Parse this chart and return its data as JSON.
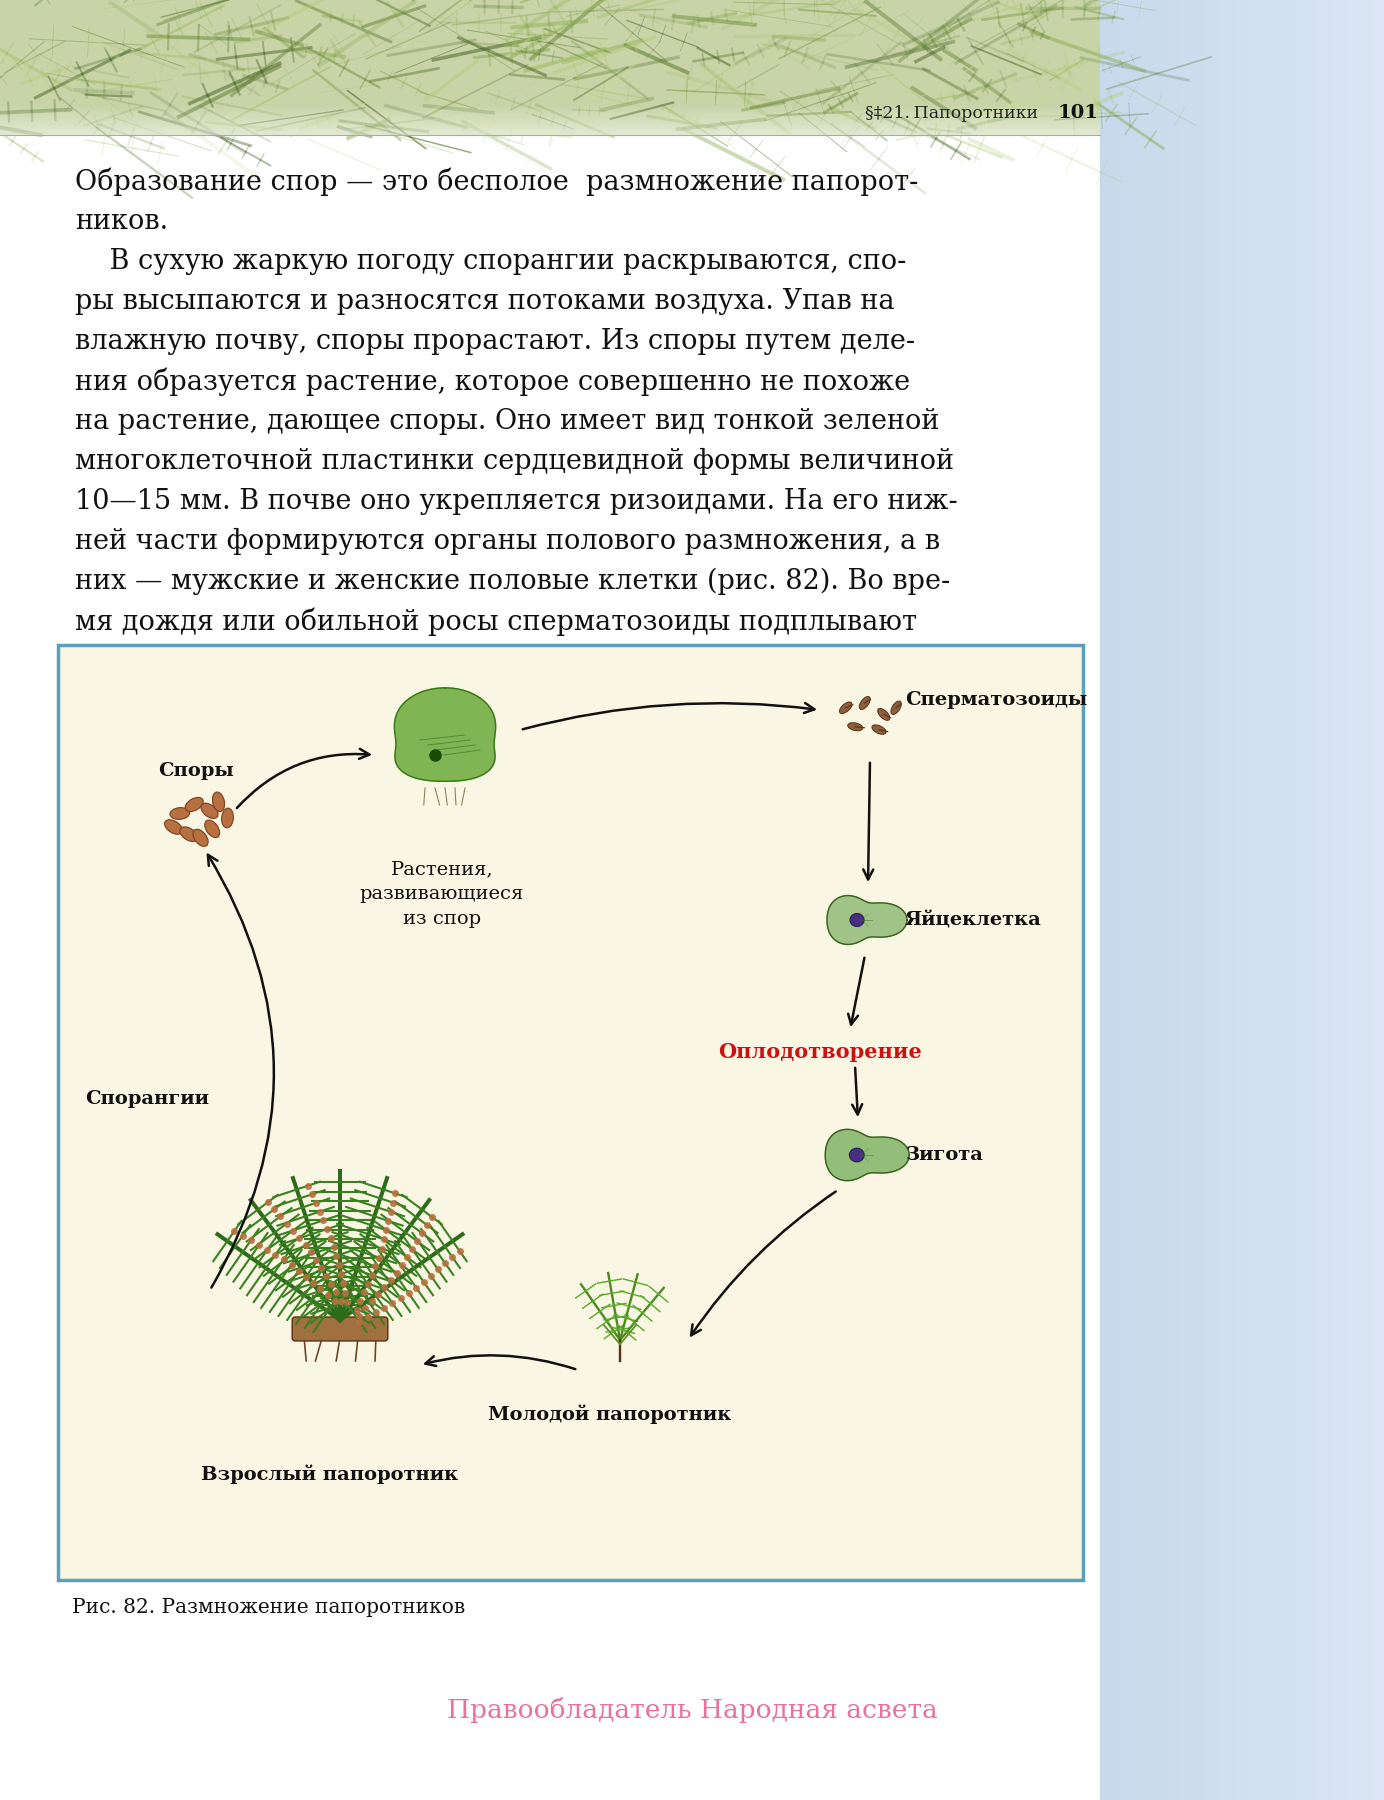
{
  "page_title": "§‡21. Папоротники",
  "page_number": "101",
  "main_text_lines": [
    "Образование спор — это бесполое  размножение папорот-",
    "ников.",
    "    В сухую жаркую погоду спорангии раскрываются, спо-",
    "ры высыпаются и разносятся потоками воздуха. Упав на",
    "влажную почву, споры прорастают. Из споры путем деле-",
    "ния образуется растение, которое совершенно не похоже",
    "на растение, дающее споры. Оно имеет вид тонкой зеленой",
    "многоклеточной пластинки сердцевидной формы величиной",
    "10—15 мм. В почве оно укрепляется ризоидами. На его ниж-",
    "ней части формируются органы полового размножения, а в",
    "них — мужские и женские половые клетки (рис. 82). Во вре-",
    "мя дождя или обильной росы сперматозоиды подплывают"
  ],
  "diagram_bg_color": "#faf6e4",
  "diagram_border_color": "#5aa0b8",
  "diagram_labels": {
    "spory": "Споры",
    "sporangii": "Спорангии",
    "vzrosly": "Взрослый папоротник",
    "molodoy": "Молодой папоротник",
    "rasteniya": "Растения,\nразвивающиеся\nиз спор",
    "spermatozoidy": "Сперматозоиды",
    "yaytskletka": "Яйцеклетка",
    "oplodotvorenie": "Оплодотворение",
    "zigota": "Зигота"
  },
  "caption": "Рис. 82. Размножение папоротников",
  "copyright_text": "Правообладатель Народная асвета",
  "copyright_color": "#e8729a",
  "text_color": "#111111",
  "sidebar_color_top": "#c5d8e8",
  "sidebar_color_bottom": "#dce8f0"
}
